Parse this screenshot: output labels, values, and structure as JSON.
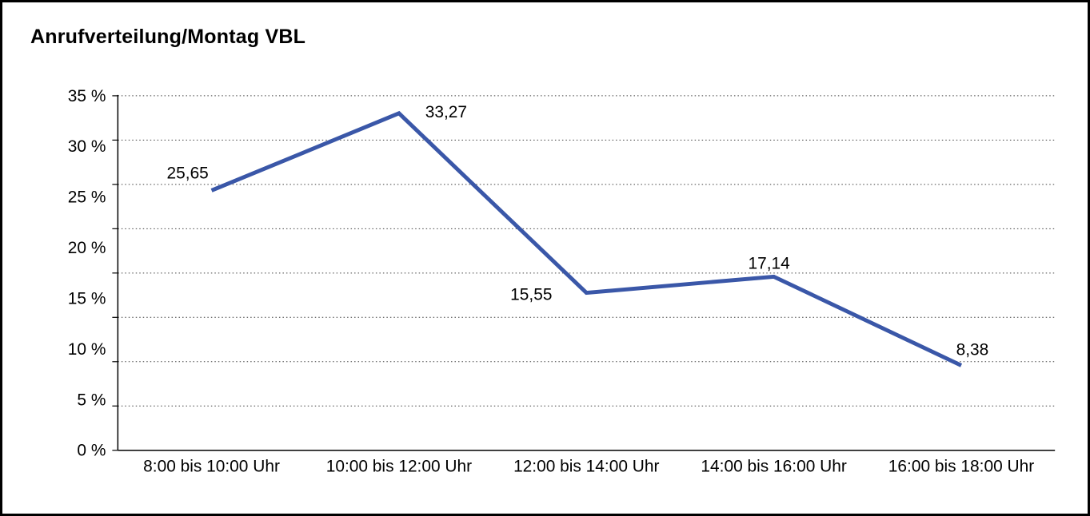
{
  "window": {
    "background": "#ffffff",
    "border_color": "#000000"
  },
  "chart_data": {
    "type": "line",
    "title": "Anrufverteilung/Montag VBL",
    "categories": [
      "8:00 bis 10:00 Uhr",
      "10:00 bis 12:00 Uhr",
      "12:00 bis 14:00 Uhr",
      "14:00 bis 16:00 Uhr",
      "16:00 bis 18:00 Uhr"
    ],
    "values": [
      25.65,
      33.27,
      15.55,
      17.14,
      8.38
    ],
    "value_labels": [
      "25,65",
      "33,27",
      "15,55",
      "17,14",
      "8,38"
    ],
    "xlabel": "",
    "ylabel": "",
    "ylim": [
      0,
      35
    ],
    "ytick_labels": [
      "0 %",
      "5 %",
      "10 %",
      "15 %",
      "20 %",
      "25 %",
      "30 %",
      "35 %"
    ],
    "grid": {
      "visible": true,
      "style": "dotted",
      "horizontal_intervals": 8
    },
    "legend": {
      "visible": false,
      "position": "none"
    },
    "line_color": "#3A57A8",
    "text_color": "#000000",
    "gridline_color": "#404040"
  }
}
